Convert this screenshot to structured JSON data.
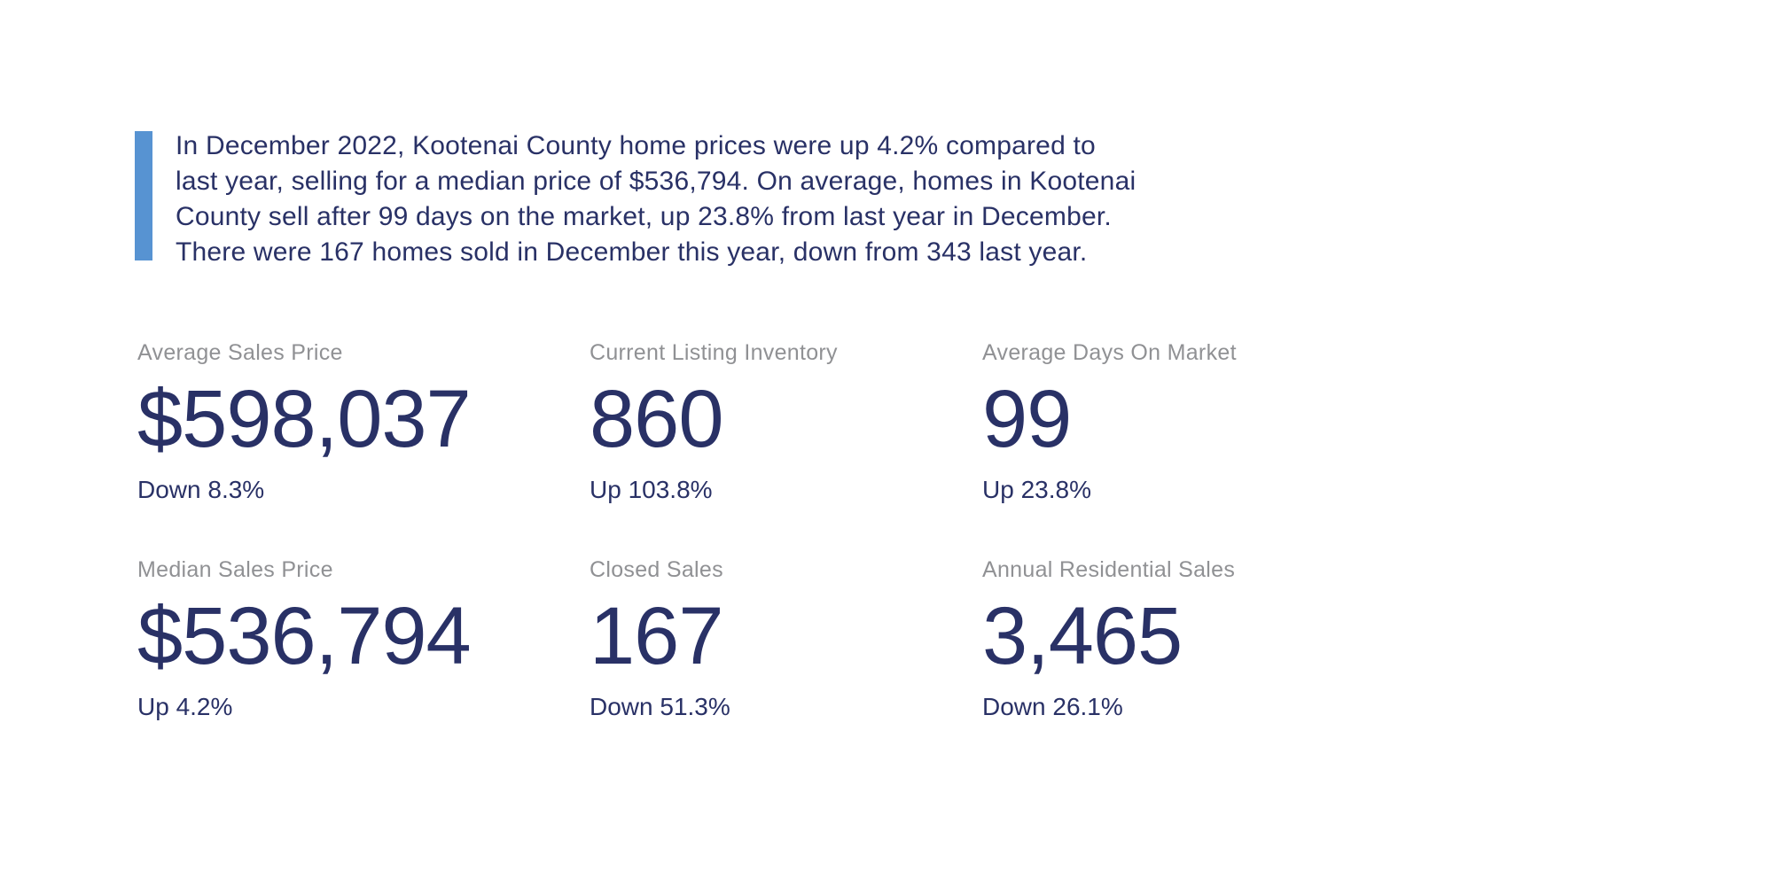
{
  "summary": {
    "full_text": "In December 2022, Kootenai County home prices were up 4.2% compared to last year, selling for a median price of $536,794. On average, homes in Kootenai County sell after 99 days on the market, up 23.8% from last year in December. There were 167 homes sold in December this year, down from 343 last year.",
    "lines": [
      "In December 2022, Kootenai County home prices were up 4.2% compared to",
      "last year, selling for a median price of $536,794. On average, homes in Kootenai",
      "County sell after 99 days on the market, up 23.8% from last year in December.",
      "There were 167 homes sold in December this year, down from 343 last year."
    ]
  },
  "stats": [
    {
      "label": "Average Sales Price",
      "value": "$598,037",
      "change": "Down 8.3%"
    },
    {
      "label": "Current Listing Inventory",
      "value": "860",
      "change": "Up 103.8%"
    },
    {
      "label": "Average Days On Market",
      "value": "99",
      "change": "Up 23.8%"
    },
    {
      "label": "Median Sales Price",
      "value": "$536,794",
      "change": "Up 4.2%"
    },
    {
      "label": "Closed Sales",
      "value": "167",
      "change": "Down 51.3%"
    },
    {
      "label": "Annual Residential Sales",
      "value": "3,465",
      "change": "Down 26.1%"
    }
  ],
  "colors": {
    "navy_text": "#293166",
    "label_gray": "#909194",
    "accent_blue": "#5793d2",
    "background": "#ffffff"
  }
}
